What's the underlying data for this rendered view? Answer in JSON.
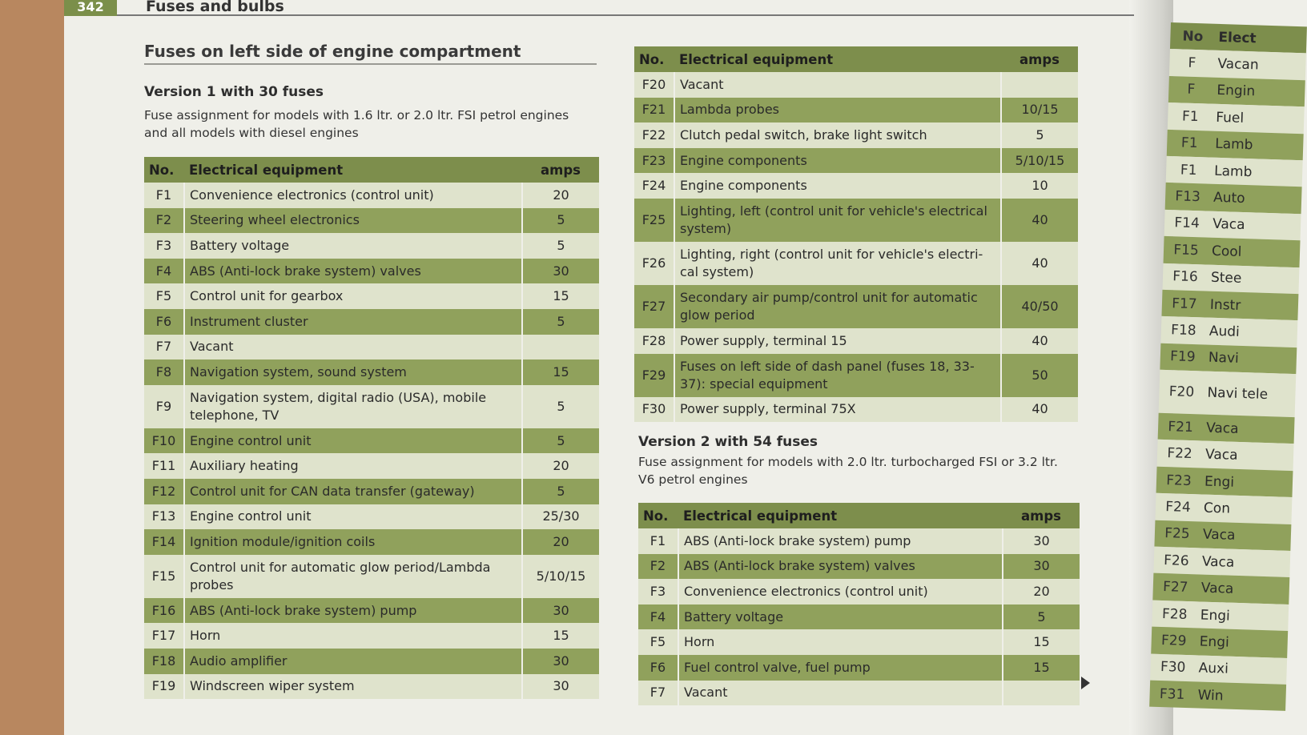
{
  "page": {
    "number": "342",
    "header": "Fuses and bulbs"
  },
  "section_title": "Fuses on left side of engine compartment",
  "version1": {
    "title": "Version 1 with 30 fuses",
    "desc_line1": "Fuse assignment for models with 1.6 ltr. or 2.0 ltr. FSI petrol engines",
    "desc_line2": "and all models with diesel engines"
  },
  "table_headers": {
    "no": "No.",
    "equipment": "Electrical equipment",
    "amps": "amps"
  },
  "table1": [
    {
      "no": "F1",
      "eq": "Convenience electronics (control unit)",
      "amps": "20"
    },
    {
      "no": "F2",
      "eq": "Steering wheel electronics",
      "amps": "5"
    },
    {
      "no": "F3",
      "eq": "Battery voltage",
      "amps": "5"
    },
    {
      "no": "F4",
      "eq": "ABS (Anti-lock brake system) valves",
      "amps": "30"
    },
    {
      "no": "F5",
      "eq": "Control unit for gearbox",
      "amps": "15"
    },
    {
      "no": "F6",
      "eq": "Instrument cluster",
      "amps": "5"
    },
    {
      "no": "F7",
      "eq": "Vacant",
      "amps": ""
    },
    {
      "no": "F8",
      "eq": "Navigation system, sound system",
      "amps": "15"
    },
    {
      "no": "F9",
      "eq": "Navigation system, digital radio (USA), mobile telephone, TV",
      "amps": "5"
    },
    {
      "no": "F10",
      "eq": "Engine control unit",
      "amps": "5"
    },
    {
      "no": "F11",
      "eq": "Auxiliary heating",
      "amps": "20"
    },
    {
      "no": "F12",
      "eq": "Control unit for CAN data transfer (gateway)",
      "amps": "5"
    },
    {
      "no": "F13",
      "eq": "Engine control unit",
      "amps": "25/30"
    },
    {
      "no": "F14",
      "eq": "Ignition module/ignition coils",
      "amps": "20"
    },
    {
      "no": "F15",
      "eq": "Control unit for automatic glow period/Lambda probes",
      "amps": "5/10/15"
    },
    {
      "no": "F16",
      "eq": "ABS (Anti-lock brake system) pump",
      "amps": "30"
    },
    {
      "no": "F17",
      "eq": "Horn",
      "amps": "15"
    },
    {
      "no": "F18",
      "eq": "Audio amplifier",
      "amps": "30"
    },
    {
      "no": "F19",
      "eq": "Windscreen wiper system",
      "amps": "30"
    }
  ],
  "table2": [
    {
      "no": "F20",
      "eq": "Vacant",
      "amps": ""
    },
    {
      "no": "F21",
      "eq": "Lambda probes",
      "amps": "10/15"
    },
    {
      "no": "F22",
      "eq": "Clutch pedal switch, brake light switch",
      "amps": "5"
    },
    {
      "no": "F23",
      "eq": "Engine components",
      "amps": "5/10/15"
    },
    {
      "no": "F24",
      "eq": "Engine components",
      "amps": "10"
    },
    {
      "no": "F25",
      "eq": "Lighting, left (control unit for vehicle's electrical system)",
      "amps": "40"
    },
    {
      "no": "F26",
      "eq": "Lighting, right (control unit for vehicle's electri-cal system)",
      "amps": "40"
    },
    {
      "no": "F27",
      "eq": "Secondary air pump/control unit for automatic glow period",
      "amps": "40/50"
    },
    {
      "no": "F28",
      "eq": "Power supply, terminal 15",
      "amps": "40"
    },
    {
      "no": "F29",
      "eq": "Fuses on left side of dash panel (fuses 18, 33-37): special equipment",
      "amps": "50"
    },
    {
      "no": "F30",
      "eq": "Power supply, terminal 75X",
      "amps": "40"
    }
  ],
  "version2": {
    "title": "Version 2 with 54 fuses",
    "desc_line1": "Fuse assignment for models with 2.0 ltr. turbocharged FSI or 3.2 ltr.",
    "desc_line2": "V6 petrol engines"
  },
  "table3": [
    {
      "no": "F1",
      "eq": "ABS (Anti-lock brake system) pump",
      "amps": "30"
    },
    {
      "no": "F2",
      "eq": "ABS (Anti-lock brake system) valves",
      "amps": "30"
    },
    {
      "no": "F3",
      "eq": "Convenience electronics (control unit)",
      "amps": "20"
    },
    {
      "no": "F4",
      "eq": "Battery voltage",
      "amps": "5"
    },
    {
      "no": "F5",
      "eq": "Horn",
      "amps": "15"
    },
    {
      "no": "F6",
      "eq": "Fuel control valve, fuel pump",
      "amps": "15"
    },
    {
      "no": "F7",
      "eq": "Vacant",
      "amps": ""
    }
  ],
  "right_page": {
    "header_no": "No",
    "header_eq": "Elect",
    "rows": [
      {
        "no": "F",
        "eq": "Vacan"
      },
      {
        "no": "F",
        "eq": "Engin"
      },
      {
        "no": "F1",
        "eq": "Fuel"
      },
      {
        "no": "F1",
        "eq": "Lamb"
      },
      {
        "no": "F1",
        "eq": "Lamb"
      },
      {
        "no": "F13",
        "eq": "Auto"
      },
      {
        "no": "F14",
        "eq": "Vaca"
      },
      {
        "no": "F15",
        "eq": "Cool"
      },
      {
        "no": "F16",
        "eq": "Stee"
      },
      {
        "no": "F17",
        "eq": "Instr"
      },
      {
        "no": "F18",
        "eq": "Audi"
      },
      {
        "no": "F19",
        "eq": "Navi"
      },
      {
        "no": "F20",
        "eq": "Navi tele"
      },
      {
        "no": "F21",
        "eq": "Vaca"
      },
      {
        "no": "F22",
        "eq": "Vaca"
      },
      {
        "no": "F23",
        "eq": "Engi"
      },
      {
        "no": "F24",
        "eq": "Con"
      },
      {
        "no": "F25",
        "eq": "Vaca"
      },
      {
        "no": "F26",
        "eq": "Vaca"
      },
      {
        "no": "F27",
        "eq": "Vaca"
      },
      {
        "no": "F28",
        "eq": "Engi"
      },
      {
        "no": "F29",
        "eq": "Engi"
      },
      {
        "no": "F30",
        "eq": "Auxi"
      },
      {
        "no": "F31",
        "eq": "Win"
      }
    ]
  },
  "colors": {
    "header_green": "#7d8e4c",
    "row_light": "#dfe3cc",
    "row_dark": "#90a15c",
    "paper": "#efefe9"
  }
}
